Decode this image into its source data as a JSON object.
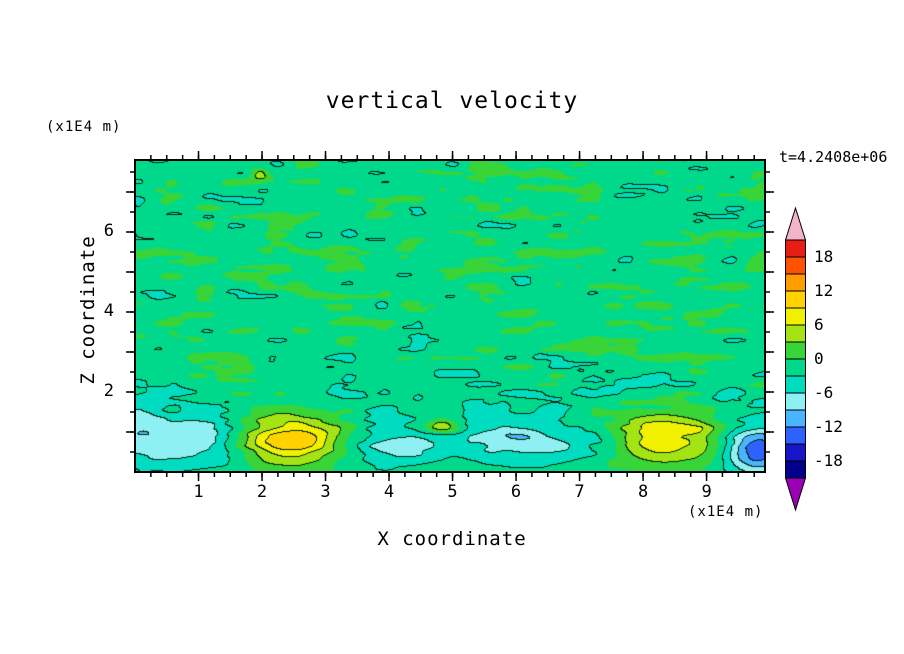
{
  "figure": {
    "title": "vertical velocity",
    "time_label": "t=4.2408e+06",
    "x_axis": {
      "label": "X coordinate",
      "units": "(x1E4 m)"
    },
    "z_axis": {
      "label": "Z coordinate",
      "units": "(x1E4 m)"
    }
  },
  "chart_data": {
    "type": "heatmap",
    "title": "vertical velocity",
    "xlabel": "X coordinate",
    "ylabel": "Z coordinate",
    "x_units": "(x1E4 m)",
    "z_units": "(x1E4 m)",
    "time_annotation": "t=4.2408e+06",
    "xlim": [
      0,
      9.92
    ],
    "zlim": [
      0,
      7.8
    ],
    "x_major_ticks": [
      1,
      2,
      3,
      4,
      5,
      6,
      7,
      8,
      9
    ],
    "x_minor_step": 0.25,
    "z_major_ticks": [
      1,
      2,
      3,
      4,
      5,
      6,
      7
    ],
    "z_labeled_ticks": [
      2,
      4,
      6
    ],
    "z_minor_step": 0.5,
    "value_range": [
      -21,
      21
    ],
    "contour_interval": 3,
    "colorbar": {
      "labels": [
        18,
        12,
        6,
        0,
        -6,
        -12,
        -18
      ],
      "band_colors_low_to_high": [
        "#00008c",
        "#1616c8",
        "#2e62ff",
        "#49b4ff",
        "#8ef0f2",
        "#00dcc0",
        "#00d98c",
        "#38d438",
        "#a4e414",
        "#f0f000",
        "#ffd200",
        "#ff9c00",
        "#ff5200",
        "#e61e14"
      ],
      "under_arrow_color": "#9a00b4",
      "over_arrow_color": "#f2b4c6"
    },
    "field": {
      "background_value": -1.0,
      "noise": {
        "seed": 20240521,
        "amplitude": 2.3,
        "octave2_amplitude": 1.1,
        "scale_x": 0.55,
        "scale_z": 0.22,
        "bottom_damping_z": 1.9
      },
      "features": [
        {
          "x": 2.45,
          "z": 0.8,
          "a": 12.0,
          "rx": 0.55,
          "rz": 0.42
        },
        {
          "x": 8.35,
          "z": 0.9,
          "a": 9.0,
          "rx": 0.8,
          "rz": 0.5
        },
        {
          "x": 4.85,
          "z": 1.15,
          "a": 7.0,
          "rx": 0.2,
          "rz": 0.16
        },
        {
          "x": 1.97,
          "z": 7.45,
          "a": 6.5,
          "rx": 0.12,
          "rz": 0.1
        },
        {
          "x": 0.95,
          "z": 0.8,
          "a": -7.5,
          "rx": 0.5,
          "rz": 0.5
        },
        {
          "x": 0.1,
          "z": 0.95,
          "a": -6.0,
          "rx": 0.3,
          "rz": 0.5
        },
        {
          "x": 4.2,
          "z": 0.65,
          "a": -6.5,
          "rx": 0.55,
          "rz": 0.38
        },
        {
          "x": 5.8,
          "z": 0.9,
          "a": -6.0,
          "rx": 0.5,
          "rz": 0.45
        },
        {
          "x": 6.6,
          "z": 0.65,
          "a": -5.5,
          "rx": 0.45,
          "rz": 0.33
        },
        {
          "x": 7.35,
          "z": 0.8,
          "a": -4.5,
          "rx": 0.28,
          "rz": 0.28
        },
        {
          "x": 9.78,
          "z": 0.55,
          "a": -14.0,
          "rx": 0.38,
          "rz": 0.42
        },
        {
          "x": 5.5,
          "z": 1.85,
          "a": -1.7,
          "rx": 4.5,
          "rz": 0.35
        }
      ]
    }
  }
}
